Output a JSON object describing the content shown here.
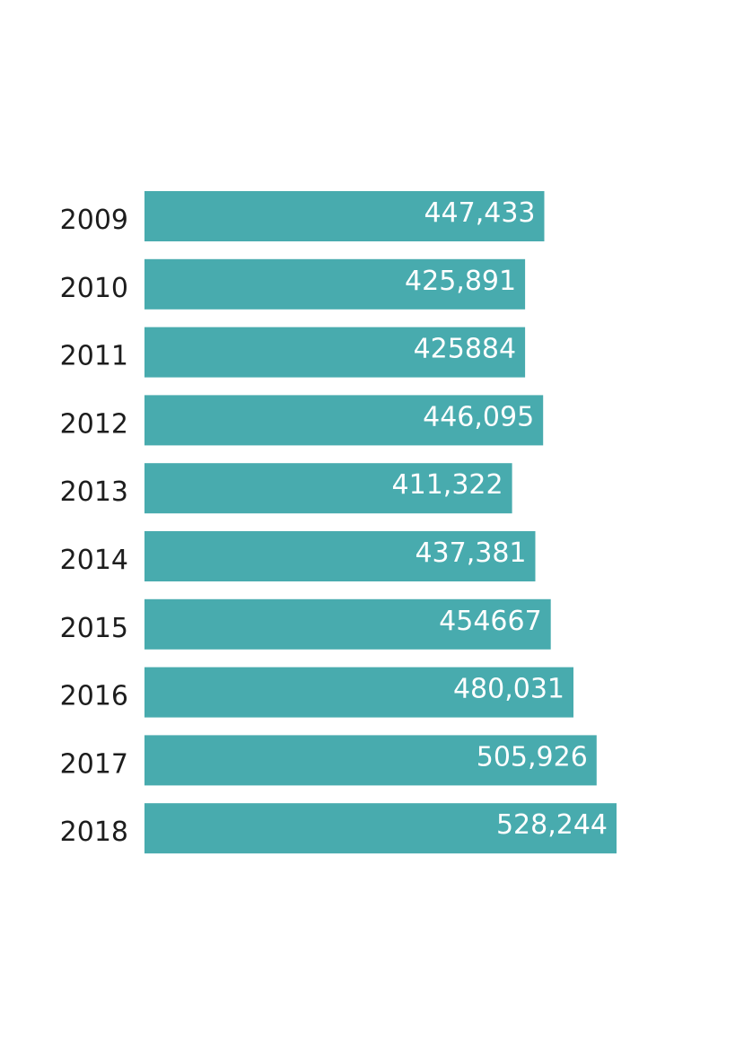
{
  "colors": {
    "bar": "#48abae",
    "value_text": "#ffffff",
    "category_text": "#1d1d1d",
    "background": "#ffffff"
  },
  "chart_data": {
    "type": "bar",
    "orientation": "horizontal",
    "title": "",
    "xlabel": "",
    "ylabel": "",
    "grid": false,
    "categories": [
      "2009",
      "2010",
      "2011",
      "2012",
      "2013",
      "2014",
      "2015",
      "2016",
      "2017",
      "2018"
    ],
    "values": [
      447433,
      425891,
      425884,
      446095,
      411322,
      437381,
      454667,
      480031,
      505926,
      528244
    ],
    "value_labels": [
      "447,433",
      "425,891",
      "425884",
      "446,095",
      "411,322",
      "437,381",
      "454667",
      "480,031",
      "505,926",
      "528,244"
    ],
    "xlim": [
      0,
      528244
    ]
  }
}
